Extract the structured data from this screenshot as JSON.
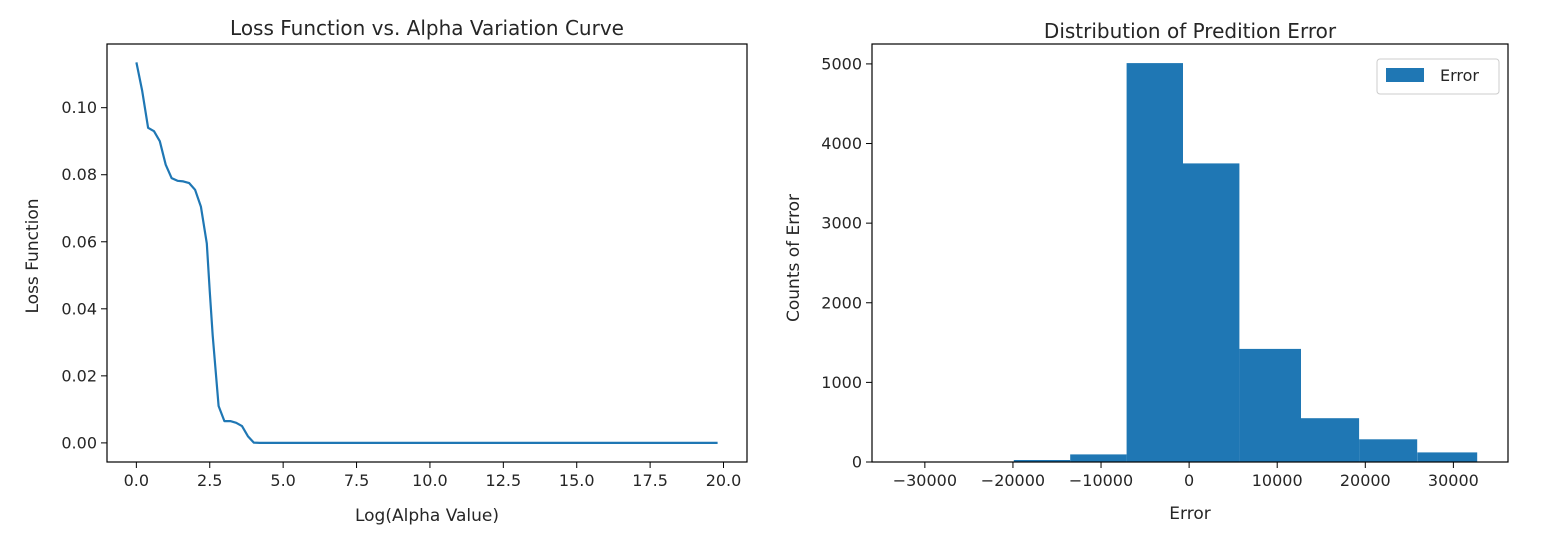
{
  "chart_data": [
    {
      "type": "line",
      "title": "Loss Function vs. Alpha Variation Curve",
      "xlabel": "Log(Alpha Value)",
      "ylabel": "Loss Function",
      "xlim": [
        -1.0,
        20.8
      ],
      "ylim": [
        -0.0057,
        0.119
      ],
      "xticks": [
        0.0,
        2.5,
        5.0,
        7.5,
        10.0,
        12.5,
        15.0,
        17.5,
        20.0
      ],
      "xtick_labels": [
        "0.0",
        "2.5",
        "5.0",
        "7.5",
        "10.0",
        "12.5",
        "15.0",
        "17.5",
        "20.0"
      ],
      "yticks": [
        0.0,
        0.02,
        0.04,
        0.06,
        0.08,
        0.1
      ],
      "ytick_labels": [
        "0.00",
        "0.02",
        "0.04",
        "0.06",
        "0.08",
        "0.10"
      ],
      "grid": false,
      "color": "#1f77b4",
      "series": [
        {
          "x": [
            0.0,
            0.2,
            0.4,
            0.6,
            0.8,
            1.0,
            1.2,
            1.4,
            1.6,
            1.8,
            2.0,
            2.2,
            2.4,
            2.5,
            2.6,
            2.8,
            3.0,
            3.2,
            3.4,
            3.6,
            3.8,
            4.0,
            4.2,
            5.0,
            7.5,
            10.0,
            12.5,
            15.0,
            17.5,
            19.8
          ],
          "y": [
            0.1135,
            0.105,
            0.094,
            0.093,
            0.09,
            0.083,
            0.079,
            0.0782,
            0.078,
            0.0775,
            0.0755,
            0.0705,
            0.0595,
            0.045,
            0.032,
            0.011,
            0.0065,
            0.0065,
            0.006,
            0.005,
            0.002,
            0.0001,
            0.0,
            0.0,
            0.0,
            0.0,
            0.0,
            0.0,
            0.0,
            0.0
          ]
        }
      ]
    },
    {
      "type": "bar",
      "title": "Distribution of Predition Error",
      "xlabel": "Error",
      "ylabel": "Counts of Error",
      "xlim": [
        -36000,
        36200
      ],
      "ylim": [
        0,
        5250
      ],
      "xticks": [
        -30000,
        -20000,
        -10000,
        0,
        10000,
        20000,
        30000
      ],
      "xtick_labels": [
        "−30000",
        "−20000",
        "−10000",
        "0",
        "10000",
        "20000",
        "30000"
      ],
      "yticks": [
        0,
        1000,
        2000,
        3000,
        4000,
        5000
      ],
      "ytick_labels": [
        "0",
        "1000",
        "2000",
        "3000",
        "4000",
        "5000"
      ],
      "grid": false,
      "legend": {
        "position": "top-right",
        "entries": [
          "Error"
        ]
      },
      "color": "#1f77b4",
      "bins": [
        {
          "x0": -32700,
          "x1": -26300,
          "count": 2
        },
        {
          "x0": -26300,
          "x1": -19900,
          "count": 5
        },
        {
          "x0": -19900,
          "x1": -13500,
          "count": 25
        },
        {
          "x0": -13500,
          "x1": -7100,
          "count": 95
        },
        {
          "x0": -7100,
          "x1": -700,
          "count": 5010
        },
        {
          "x0": -700,
          "x1": 5700,
          "count": 3750
        },
        {
          "x0": 5700,
          "x1": 12700,
          "count": 1420
        },
        {
          "x0": 12700,
          "x1": 19300,
          "count": 550
        },
        {
          "x0": 19300,
          "x1": 25900,
          "count": 285
        },
        {
          "x0": 25900,
          "x1": 32700,
          "count": 120
        }
      ]
    }
  ]
}
